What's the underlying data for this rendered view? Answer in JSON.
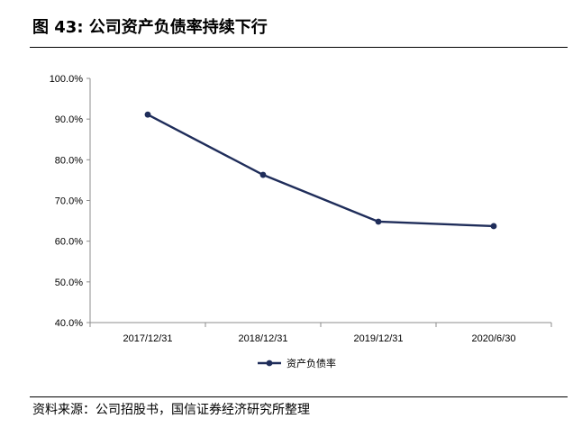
{
  "figure": {
    "title": "图 43: 公司资产负债率持续下行",
    "source": "资料来源：公司招股书，国信证券经济研究所整理"
  },
  "chart_data": {
    "type": "line",
    "categories": [
      "2017/12/31",
      "2018/12/31",
      "2019/12/31",
      "2020/6/30"
    ],
    "series": [
      {
        "name": "资产负债率",
        "values": [
          91.1,
          76.3,
          64.8,
          63.7
        ],
        "color": "#1f2d5a"
      }
    ],
    "y_ticks": [
      "40.0%",
      "50.0%",
      "60.0%",
      "70.0%",
      "80.0%",
      "90.0%",
      "100.0%"
    ],
    "ylim": [
      40,
      100
    ],
    "y_unit": "%",
    "grid": false,
    "legend_position": "bottom",
    "marker": "circle"
  }
}
